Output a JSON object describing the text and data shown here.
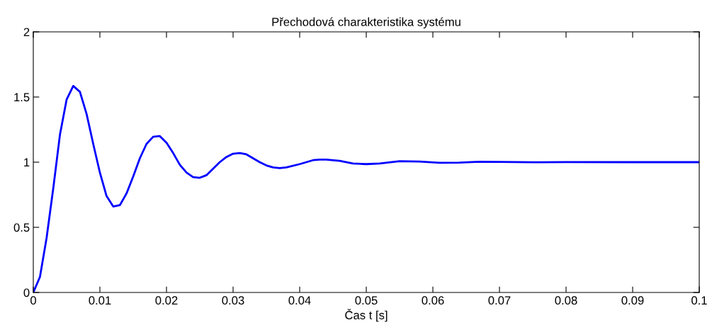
{
  "chart_data": {
    "type": "line",
    "title": "Přechodová charakteristika systému",
    "xlabel": "Čas t [s]",
    "x": [
      0,
      0.001,
      0.002,
      0.003,
      0.004,
      0.005,
      0.006,
      0.007,
      0.008,
      0.009,
      0.01,
      0.011,
      0.012,
      0.013,
      0.014,
      0.015,
      0.016,
      0.017,
      0.018,
      0.019,
      0.02,
      0.021,
      0.022,
      0.023,
      0.024,
      0.025,
      0.026,
      0.027,
      0.028,
      0.029,
      0.03,
      0.031,
      0.032,
      0.033,
      0.034,
      0.035,
      0.036,
      0.037,
      0.038,
      0.04,
      0.042,
      0.043,
      0.044,
      0.046,
      0.048,
      0.05,
      0.052,
      0.055,
      0.058,
      0.061,
      0.064,
      0.067,
      0.07,
      0.075,
      0.08,
      0.09,
      0.1
    ],
    "series": [
      {
        "color": "#0000ff",
        "values": [
          0,
          0.12,
          0.42,
          0.8,
          1.21,
          1.48,
          1.585,
          1.54,
          1.37,
          1.14,
          0.92,
          0.74,
          0.66,
          0.67,
          0.76,
          0.89,
          1.03,
          1.14,
          1.195,
          1.2,
          1.15,
          1.07,
          0.98,
          0.92,
          0.885,
          0.88,
          0.9,
          0.95,
          1.0,
          1.04,
          1.065,
          1.07,
          1.06,
          1.03,
          1.0,
          0.975,
          0.96,
          0.955,
          0.96,
          0.985,
          1.015,
          1.02,
          1.02,
          1.01,
          0.99,
          0.985,
          0.99,
          1.008,
          1.005,
          0.995,
          0.996,
          1.003,
          1.002,
          0.999,
          1.001,
          1.0,
          1.0
        ]
      }
    ],
    "xlim": [
      0,
      0.1
    ],
    "xticks": [
      0,
      0.01,
      0.02,
      0.03,
      0.04,
      0.05,
      0.06,
      0.07,
      0.08,
      0.09,
      0.1
    ],
    "ylim": [
      0,
      2
    ],
    "yticks": [
      0,
      0.5,
      1,
      1.5,
      2
    ],
    "grid": false,
    "line_style": "solid",
    "marker": "none"
  }
}
